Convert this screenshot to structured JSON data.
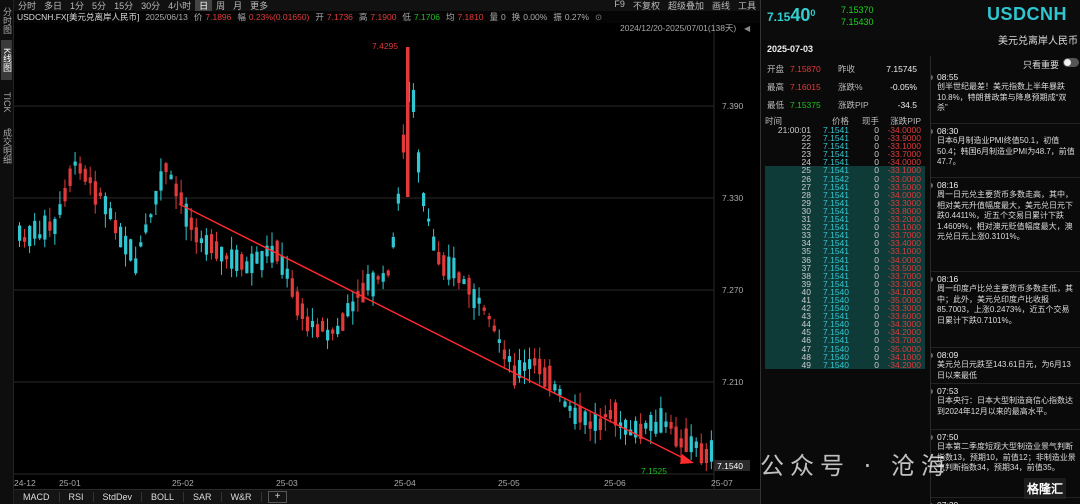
{
  "left_strip": [
    "分时图",
    "K线图",
    "TICK",
    "成交明细"
  ],
  "toolbar": {
    "periods": [
      "分时",
      "多日",
      "1分",
      "5分",
      "15分",
      "30分",
      "4小时",
      "日",
      "周",
      "月",
      "更多"
    ],
    "active_period": "日",
    "right": [
      "F9",
      "不复权",
      "超级叠加",
      "画线",
      "工具"
    ]
  },
  "infobar": {
    "symbol": "USDCNH.FX[美元兑离岸人民币]",
    "date": "2025/06/13",
    "price_label": "价",
    "price": "7.1896",
    "chg_label": "幅",
    "chg": "0.23%(0.01650)",
    "open_label": "开",
    "open": "7.1736",
    "high_label": "高",
    "high": "7.1900",
    "low_label": "低",
    "low": "7.1706",
    "avg_label": "均",
    "avg": "7.1810",
    "vol_label": "量",
    "vol": "0",
    "turn_label": "换",
    "turn": "0.00%",
    "amp_label": "振",
    "amp": "0.27%"
  },
  "chart": {
    "range_label": "2024/12/20-2025/07/01(138天)",
    "y_ticks": [
      "7.390",
      "7.330",
      "7.270",
      "7.210",
      "7.150"
    ],
    "x_ticks": [
      "24-12",
      "25-01",
      "25-02",
      "25-03",
      "25-04",
      "25-05",
      "25-06",
      "25-07"
    ],
    "high_label": "7.4295",
    "low_label": "7.1525",
    "last_label": "7.1540",
    "colors": {
      "up": "#e23a3a",
      "down": "#31c7d2",
      "trend": "#ff2a2a"
    }
  },
  "bottom_tabs": [
    "MACD",
    "RSI",
    "StdDev",
    "BOLL",
    "SAR",
    "W&R"
  ],
  "plus": "+",
  "quote": {
    "price_prefix": "7.15",
    "price_big": "40",
    "price_sup": "0",
    "bid": "7.15370",
    "ask": "7.15430",
    "symbol": "USDCNH",
    "name": "美元兑离岸人民币",
    "date": "2025-07-03",
    "stats": [
      {
        "l1": "开盘",
        "v1": "7.15870",
        "l2": "昨收",
        "v2": "7.15745"
      },
      {
        "l1": "最高",
        "v1": "7.16015",
        "l2": "涨跌%",
        "v2": "-0.05%"
      },
      {
        "l1": "最低",
        "v1": "7.15375",
        "l2": "涨跌PIP",
        "v2": "-34.5"
      }
    ]
  },
  "ticks": {
    "headers": [
      "时间",
      "价格",
      "现手",
      "涨跌PIP"
    ],
    "rows": [
      [
        "21:00:01",
        "7.1541",
        "0",
        "-34.0000"
      ],
      [
        "22",
        "7.1541",
        "0",
        "-33.9000"
      ],
      [
        "22",
        "7.1541",
        "0",
        "-33.1000"
      ],
      [
        "23",
        "7.1541",
        "0",
        "-33.7000"
      ],
      [
        "24",
        "7.1541",
        "0",
        "-34.0000"
      ],
      [
        "25",
        "7.1541",
        "0",
        "-33.1000"
      ],
      [
        "26",
        "7.1542",
        "0",
        "-33.0000"
      ],
      [
        "27",
        "7.1541",
        "0",
        "-33.5000"
      ],
      [
        "28",
        "7.1541",
        "0",
        "-34.0000"
      ],
      [
        "29",
        "7.1541",
        "0",
        "-33.3000"
      ],
      [
        "30",
        "7.1541",
        "0",
        "-33.8000"
      ],
      [
        "31",
        "7.1541",
        "0",
        "-33.2000"
      ],
      [
        "32",
        "7.1541",
        "0",
        "-33.1000"
      ],
      [
        "33",
        "7.1541",
        "0",
        "-33.7000"
      ],
      [
        "34",
        "7.1541",
        "0",
        "-33.4000"
      ],
      [
        "35",
        "7.1541",
        "0",
        "-33.1000"
      ],
      [
        "36",
        "7.1541",
        "0",
        "-34.0000"
      ],
      [
        "37",
        "7.1541",
        "0",
        "-33.5000"
      ],
      [
        "38",
        "7.1541",
        "0",
        "-33.7000"
      ],
      [
        "39",
        "7.1541",
        "0",
        "-33.3000"
      ],
      [
        "40",
        "7.1540",
        "0",
        "-34.1000"
      ],
      [
        "41",
        "7.1540",
        "0",
        "-35.0000"
      ],
      [
        "42",
        "7.1540",
        "0",
        "-33.3000"
      ],
      [
        "43",
        "7.1541",
        "0",
        "-33.6000"
      ],
      [
        "44",
        "7.1540",
        "0",
        "-34.3000"
      ],
      [
        "45",
        "7.1540",
        "0",
        "-34.2000"
      ],
      [
        "46",
        "7.1541",
        "0",
        "-33.7000"
      ],
      [
        "47",
        "7.1540",
        "0",
        "-35.0000"
      ],
      [
        "48",
        "7.1540",
        "0",
        "-34.1000"
      ],
      [
        "49",
        "7.1540",
        "0",
        "-34.2000"
      ]
    ]
  },
  "news": {
    "important_label": "只看重要",
    "items": [
      {
        "time": "08:55",
        "text": "创半世纪最差！美元指数上半年暴跌10.8%，特朗普政策与降息预期成“双杀”"
      },
      {
        "time": "08:30",
        "text": "日本6月制造业PMI终值50.1，初值50.4；韩国6月制造业PMI为48.7，前值47.7。"
      },
      {
        "time": "08:16",
        "text": "周一日元兑主要货币多数走高，其中，相对美元升值幅度最大，美元兑日元下跌0.4411%，近五个交易日累计下跌1.4609%，相对澳元贬值幅度最大，澳元兑日元上涨0.3101%。"
      },
      {
        "time": "08:16",
        "text": "周一印度卢比兑主要货币多数走低，其中；此外，美元兑印度卢比收报85.7003，上涨0.2473%，近五个交易日累计下跌0.7101%。"
      },
      {
        "time": "08:09",
        "text": "美元兑日元跌至143.61日元，为6月13日以来最低"
      },
      {
        "time": "07:53",
        "text": "日本央行：日本大型制造商信心指数达到2024年12月以来的最高水平。"
      },
      {
        "time": "07:50",
        "text": "日本第二季度短观大型制造业景气判断指数13，预期10，前值12；非制造业景气判断指数34，预期34，前值35。"
      },
      {
        "time": "07:30",
        "text": ""
      }
    ]
  },
  "watermark": "公众号 · 沧海",
  "logo": "格隆汇"
}
